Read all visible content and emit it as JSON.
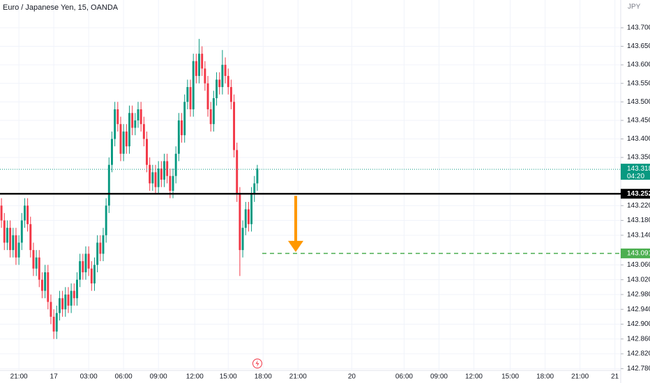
{
  "chart_data": {
    "type": "candlestick",
    "title": "Euro / Japanese Yen, 15, OANDA",
    "currency": "JPY",
    "up_color": "#089981",
    "down_color": "#f23645",
    "grid": true,
    "xlim": [
      -0.5,
      213
    ],
    "ylim": [
      142.775,
      143.775
    ],
    "xticks": [
      {
        "value": 6,
        "label": "21:00"
      },
      {
        "value": 18,
        "label": "17"
      },
      {
        "value": 30,
        "label": "03:00"
      },
      {
        "value": 42,
        "label": "06:00"
      },
      {
        "value": 54,
        "label": "09:00"
      },
      {
        "value": 66.5,
        "label": "12:00"
      },
      {
        "value": 78,
        "label": "15:00"
      },
      {
        "value": 90,
        "label": "18:00"
      },
      {
        "value": 102,
        "label": "21:00"
      },
      {
        "value": 120.5,
        "label": "20"
      },
      {
        "value": 138.5,
        "label": "06:00"
      },
      {
        "value": 150.5,
        "label": "09:00"
      },
      {
        "value": 162.5,
        "label": "12:00"
      },
      {
        "value": 175,
        "label": "15:00"
      },
      {
        "value": 187,
        "label": "18:00"
      },
      {
        "value": 199,
        "label": "21:00"
      },
      {
        "value": 211,
        "label": "21"
      }
    ],
    "yticks": [
      {
        "value": 143.7,
        "label": "143.700"
      },
      {
        "value": 143.65,
        "label": "143.650"
      },
      {
        "value": 143.6,
        "label": "143.600"
      },
      {
        "value": 143.55,
        "label": "143.550"
      },
      {
        "value": 143.5,
        "label": "143.500"
      },
      {
        "value": 143.45,
        "label": "143.450"
      },
      {
        "value": 143.4,
        "label": "143.400"
      },
      {
        "value": 143.35,
        "label": "143.350"
      },
      {
        "value": 143.22,
        "label": "143.220"
      },
      {
        "value": 143.18,
        "label": "143.180"
      },
      {
        "value": 143.14,
        "label": "143.140"
      },
      {
        "value": 143.06,
        "label": "143.060"
      },
      {
        "value": 143.02,
        "label": "143.020"
      },
      {
        "value": 142.98,
        "label": "142.980"
      },
      {
        "value": 142.94,
        "label": "142.940"
      },
      {
        "value": 142.9,
        "label": "142.900"
      },
      {
        "value": 142.86,
        "label": "142.860"
      },
      {
        "value": 142.82,
        "label": "142.820"
      },
      {
        "value": 142.78,
        "label": "142.780"
      }
    ],
    "open": [
      143.22,
      143.18,
      143.12,
      143.16,
      143.1,
      143.14,
      143.08,
      143.12,
      143.18,
      143.22,
      143.17,
      143.1,
      143.05,
      143.08,
      143.02,
      142.99,
      143.04,
      142.96,
      142.92,
      142.88,
      142.93,
      142.97,
      142.94,
      142.98,
      142.95,
      142.99,
      142.97,
      143.02,
      143.07,
      143.04,
      143.09,
      143.05,
      143.01,
      143.06,
      143.12,
      143.09,
      143.14,
      143.22,
      143.33,
      143.4,
      143.48,
      143.44,
      143.36,
      143.42,
      143.38,
      143.47,
      143.43,
      143.45,
      143.48,
      143.44,
      143.4,
      143.33,
      143.28,
      143.31,
      143.27,
      143.32,
      143.29,
      143.34,
      143.3,
      143.26,
      143.3,
      143.36,
      143.45,
      143.41,
      143.5,
      143.54,
      143.48,
      143.61,
      143.57,
      143.63,
      143.59,
      143.55,
      143.48,
      143.44,
      143.51,
      143.56,
      143.54,
      143.6,
      143.57,
      143.54,
      143.5,
      143.37,
      143.25,
      143.1,
      143.16,
      143.21,
      143.17,
      143.25,
      143.28
    ],
    "high": [
      143.24,
      143.2,
      143.18,
      143.18,
      143.16,
      143.16,
      143.14,
      143.2,
      143.24,
      143.24,
      143.19,
      143.12,
      143.1,
      143.1,
      143.04,
      143.06,
      143.06,
      142.98,
      142.94,
      142.95,
      142.99,
      142.99,
      143.0,
      143.0,
      143.01,
      143.01,
      143.04,
      143.09,
      143.09,
      143.11,
      143.11,
      143.07,
      143.08,
      143.14,
      143.14,
      143.16,
      143.24,
      143.35,
      143.42,
      143.5,
      143.5,
      143.46,
      143.44,
      143.44,
      143.49,
      143.49,
      143.47,
      143.5,
      143.5,
      143.46,
      143.42,
      143.35,
      143.33,
      143.33,
      143.34,
      143.34,
      143.36,
      143.36,
      143.32,
      143.32,
      143.38,
      143.47,
      143.47,
      143.52,
      143.56,
      143.56,
      143.63,
      143.63,
      143.67,
      143.65,
      143.61,
      143.57,
      143.5,
      143.53,
      143.58,
      143.58,
      143.64,
      143.62,
      143.59,
      143.56,
      143.52,
      143.39,
      143.27,
      143.18,
      143.23,
      143.23,
      143.27,
      143.3,
      143.33
    ],
    "low": [
      143.16,
      143.1,
      143.1,
      143.08,
      143.08,
      143.06,
      143.06,
      143.1,
      143.16,
      143.15,
      143.08,
      143.03,
      143.03,
      143.0,
      142.97,
      142.97,
      142.94,
      142.9,
      142.86,
      142.86,
      142.91,
      142.92,
      142.92,
      142.93,
      142.93,
      142.95,
      142.95,
      143.0,
      143.02,
      143.02,
      143.03,
      142.99,
      142.99,
      143.04,
      143.07,
      143.07,
      143.12,
      143.2,
      143.31,
      143.38,
      143.42,
      143.34,
      143.34,
      143.36,
      143.36,
      143.41,
      143.41,
      143.43,
      143.42,
      143.38,
      143.31,
      143.26,
      143.26,
      143.25,
      143.25,
      143.27,
      143.27,
      143.28,
      143.24,
      143.24,
      143.28,
      143.34,
      143.39,
      143.39,
      143.48,
      143.46,
      143.46,
      143.55,
      143.55,
      143.57,
      143.53,
      143.46,
      143.42,
      143.42,
      143.49,
      143.52,
      143.52,
      143.55,
      143.52,
      143.48,
      143.35,
      143.23,
      143.03,
      143.08,
      143.14,
      143.15,
      143.15,
      143.23,
      143.26
    ],
    "close": [
      143.18,
      143.12,
      143.16,
      143.1,
      143.14,
      143.08,
      143.12,
      143.18,
      143.22,
      143.17,
      143.1,
      143.05,
      143.08,
      143.02,
      142.99,
      143.04,
      142.96,
      142.92,
      142.88,
      142.93,
      142.97,
      142.94,
      142.98,
      142.95,
      142.99,
      142.97,
      143.02,
      143.07,
      143.04,
      143.09,
      143.05,
      143.01,
      143.06,
      143.12,
      143.09,
      143.14,
      143.22,
      143.33,
      143.4,
      143.48,
      143.44,
      143.36,
      143.42,
      143.38,
      143.47,
      143.43,
      143.45,
      143.48,
      143.44,
      143.4,
      143.33,
      143.28,
      143.31,
      143.27,
      143.32,
      143.29,
      143.34,
      143.3,
      143.26,
      143.3,
      143.36,
      143.45,
      143.41,
      143.5,
      143.54,
      143.48,
      143.61,
      143.57,
      143.63,
      143.59,
      143.55,
      143.48,
      143.44,
      143.51,
      143.56,
      143.54,
      143.6,
      143.57,
      143.54,
      143.5,
      143.37,
      143.25,
      143.1,
      143.16,
      143.21,
      143.17,
      143.25,
      143.28,
      143.32
    ],
    "resistance": 143.252,
    "resistance_color": "#000000",
    "target": 143.091,
    "target_color": "#4caf50",
    "last_price": 143.318,
    "last_price_color": "#089981",
    "countdown": "04:20",
    "arrow_color": "#ff9800"
  }
}
